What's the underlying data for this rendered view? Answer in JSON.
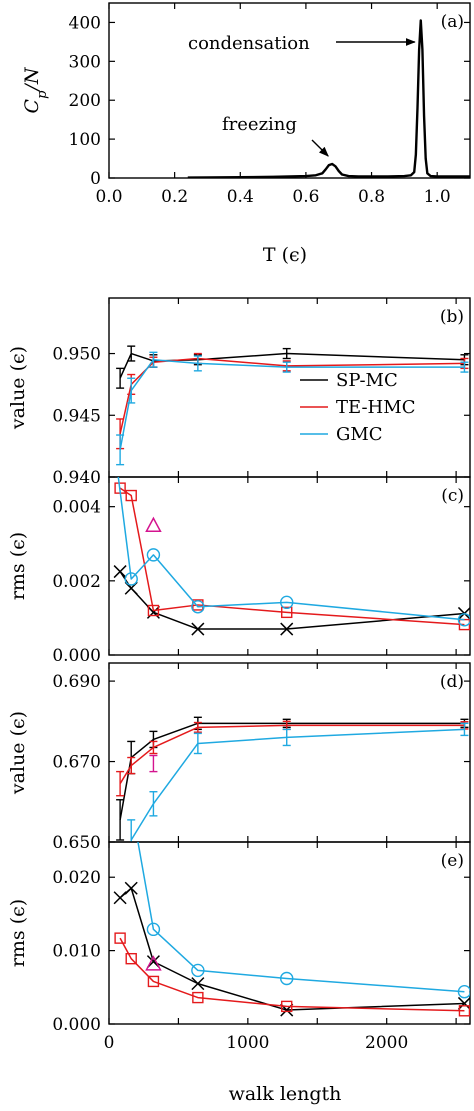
{
  "colors": {
    "SP-MC": "#000000",
    "TE-HMC": "#e41a1c",
    "GMC": "#1fa9e1",
    "extra": "#d4148f",
    "axis": "#000000"
  },
  "xlabel_top": "T (ϵ)",
  "xlabel_bottom": "walk length",
  "chart_data": [
    {
      "id": "a",
      "type": "line",
      "panel_label": "(a)",
      "ylabel": "C_p/N",
      "xlabel": "T (ϵ)",
      "xlim": [
        0.0,
        1.1
      ],
      "ylim": [
        0,
        450
      ],
      "x_ticks": [
        0.0,
        0.2,
        0.4,
        0.6,
        0.8,
        1.0
      ],
      "x_tick_labels": [
        "0.0",
        "0.2",
        "0.4",
        "0.6",
        "0.8",
        "1.0"
      ],
      "y_ticks": [
        0,
        100,
        200,
        300,
        400
      ],
      "y_tick_labels": [
        "0",
        "100",
        "200",
        "300",
        "400"
      ],
      "series": [
        {
          "key": "SP-MC",
          "x": [
            0.24,
            0.3,
            0.4,
            0.5,
            0.55,
            0.6,
            0.63,
            0.65,
            0.66,
            0.67,
            0.68,
            0.69,
            0.7,
            0.71,
            0.73,
            0.76,
            0.8,
            0.85,
            0.9,
            0.92,
            0.93,
            0.935,
            0.94,
            0.945,
            0.95,
            0.955,
            0.96,
            0.965,
            0.97,
            0.98,
            1.0,
            1.05,
            1.1
          ],
          "y": [
            1,
            1.5,
            2,
            3,
            4,
            5,
            7,
            12,
            22,
            33,
            36,
            30,
            18,
            9,
            5,
            4,
            4,
            4,
            5,
            7,
            15,
            60,
            180,
            330,
            405,
            330,
            160,
            50,
            12,
            5,
            4,
            4,
            4
          ]
        }
      ],
      "annotations": [
        {
          "text": "condensation",
          "x_data": 0.95,
          "y_data": 400
        },
        {
          "text": "freezing",
          "x_data": 0.68,
          "y_data": 36
        }
      ]
    },
    {
      "id": "b",
      "type": "line",
      "panel_label": "(b)",
      "ylabel": "value (ϵ)",
      "xlim": [
        0,
        2600
      ],
      "ylim": [
        0.94,
        0.9545
      ],
      "y_ticks": [
        0.94,
        0.945,
        0.95
      ],
      "y_tick_labels": [
        "0.940",
        "0.945",
        "0.950"
      ],
      "legend": [
        "SP-MC",
        "TE-HMC",
        "GMC"
      ],
      "series": [
        {
          "key": "SP-MC",
          "name": "SP-MC",
          "x": [
            80,
            160,
            320,
            640,
            1280,
            2560
          ],
          "y": [
            0.948,
            0.95,
            0.9494,
            0.9495,
            0.95,
            0.9495
          ],
          "err": [
            0.0008,
            0.0006,
            0.0005,
            0.0004,
            0.0004,
            0.0004
          ]
        },
        {
          "key": "TE-HMC",
          "name": "TE-HMC",
          "x": [
            80,
            160,
            320,
            640,
            1280,
            2560
          ],
          "y": [
            0.9435,
            0.9475,
            0.9493,
            0.9496,
            0.949,
            0.9492
          ],
          "err": [
            0.0012,
            0.0008,
            0.0004,
            0.0004,
            0.0004,
            0.0004
          ]
        },
        {
          "key": "GMC",
          "name": "GMC",
          "x": [
            80,
            160,
            320,
            640,
            1280,
            2560
          ],
          "y": [
            0.9422,
            0.947,
            0.9495,
            0.9492,
            0.9489,
            0.9489
          ],
          "err": [
            0.0012,
            0.001,
            0.0006,
            0.0006,
            0.0004,
            0.0004
          ]
        }
      ]
    },
    {
      "id": "c",
      "type": "line",
      "panel_label": "(c)",
      "ylabel": "rms (ϵ)",
      "xlim": [
        0,
        2600
      ],
      "ylim": [
        0,
        0.0048
      ],
      "y_ticks": [
        0,
        0.002,
        0.004
      ],
      "y_tick_labels": [
        "0.000",
        "0.002",
        "0.004"
      ],
      "series": [
        {
          "key": "SP-MC",
          "marker": "x",
          "x": [
            80,
            160,
            320,
            640,
            1280,
            2560
          ],
          "y": [
            0.00225,
            0.0018,
            0.00115,
            0.0007,
            0.0007,
            0.00112
          ]
        },
        {
          "key": "TE-HMC",
          "marker": "square",
          "x": [
            80,
            160,
            320,
            640,
            1280,
            2560
          ],
          "y": [
            0.0045,
            0.0043,
            0.0012,
            0.00135,
            0.00115,
            0.00082
          ]
        },
        {
          "key": "GMC",
          "marker": "circle",
          "x": [
            50,
            160,
            320,
            640,
            1280,
            2560
          ],
          "y": [
            0.0053,
            0.00205,
            0.0027,
            0.0013,
            0.00142,
            0.00095
          ]
        },
        {
          "key": "extra",
          "marker": "triangle",
          "x": [
            320
          ],
          "y": [
            0.0035
          ]
        }
      ]
    },
    {
      "id": "d",
      "type": "line",
      "panel_label": "(d)",
      "ylabel": "value (ϵ)",
      "xlim": [
        0,
        2600
      ],
      "ylim": [
        0.65,
        0.6945
      ],
      "y_ticks": [
        0.65,
        0.67,
        0.69
      ],
      "y_tick_labels": [
        "0.650",
        "0.670",
        "0.690"
      ],
      "series": [
        {
          "key": "SP-MC",
          "x": [
            80,
            160,
            320,
            640,
            1280,
            2560
          ],
          "y": [
            0.6555,
            0.671,
            0.6755,
            0.6795,
            0.6795,
            0.6795
          ],
          "err": [
            0.005,
            0.004,
            0.002,
            0.0015,
            0.001,
            0.001
          ]
        },
        {
          "key": "TE-HMC",
          "x": [
            80,
            160,
            320,
            640,
            1280,
            2560
          ],
          "y": [
            0.6645,
            0.669,
            0.6735,
            0.6785,
            0.679,
            0.679
          ],
          "err": [
            0.003,
            0.002,
            0.0015,
            0.0012,
            0.001,
            0.0009
          ]
        },
        {
          "key": "GMC",
          "x": [
            160,
            320,
            640,
            1280,
            2560
          ],
          "y": [
            0.6505,
            0.6595,
            0.6745,
            0.676,
            0.678
          ],
          "err": [
            0.005,
            0.003,
            0.0025,
            0.002,
            0.0015
          ]
        },
        {
          "key": "extra",
          "x": [
            320
          ],
          "y": [
            0.6695
          ],
          "err": [
            0.002
          ]
        }
      ]
    },
    {
      "id": "e",
      "type": "line",
      "panel_label": "(e)",
      "ylabel": "rms (ϵ)",
      "xlim": [
        0,
        2600
      ],
      "ylim": [
        0,
        0.0248
      ],
      "y_ticks": [
        0,
        0.01,
        0.02
      ],
      "y_tick_labels": [
        "0.000",
        "0.010",
        "0.020"
      ],
      "x_ticks": [
        0,
        1000,
        2000
      ],
      "x_tick_labels": [
        "0",
        "1000",
        "2000"
      ],
      "xlabel": "walk length",
      "series": [
        {
          "key": "SP-MC",
          "marker": "x",
          "x": [
            80,
            160,
            320,
            640,
            1280,
            2560
          ],
          "y": [
            0.0172,
            0.0185,
            0.0085,
            0.0055,
            0.0019,
            0.0028
          ]
        },
        {
          "key": "TE-HMC",
          "marker": "square",
          "x": [
            80,
            160,
            320,
            640,
            1280,
            2560
          ],
          "y": [
            0.0117,
            0.0089,
            0.0058,
            0.0036,
            0.0024,
            0.0018
          ]
        },
        {
          "key": "GMC",
          "marker": "circle",
          "x": [
            160,
            320,
            640,
            1280,
            2560
          ],
          "y": [
            0.03,
            0.0129,
            0.0073,
            0.0062,
            0.0044
          ]
        },
        {
          "key": "extra",
          "marker": "triangle",
          "x": [
            320
          ],
          "y": [
            0.0082
          ]
        }
      ]
    }
  ]
}
